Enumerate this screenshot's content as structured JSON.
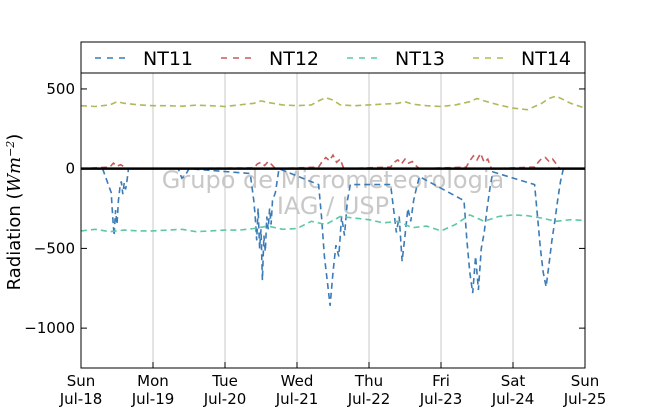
{
  "chart_data": {
    "type": "line",
    "title": "",
    "xlabel": "",
    "ylabel": "Radiation (Wm⁻²)",
    "ylabel_main": "Radiation (",
    "ylabel_unit": "Wm",
    "ylabel_exp": "−2",
    "ylabel_close": ")",
    "ylim": [
      -1250,
      600
    ],
    "yticks": [
      500,
      0,
      -500,
      -1000
    ],
    "ytick_labels": [
      "500",
      "0",
      "−500",
      "−1000"
    ],
    "xlim": [
      0,
      7
    ],
    "xticks": [
      {
        "day": "Sun",
        "date": "Jul-18"
      },
      {
        "day": "Mon",
        "date": "Jul-19"
      },
      {
        "day": "Tue",
        "date": "Jul-20"
      },
      {
        "day": "Wed",
        "date": "Jul-21"
      },
      {
        "day": "Thu",
        "date": "Jul-22"
      },
      {
        "day": "Fri",
        "date": "Jul-23"
      },
      {
        "day": "Sat",
        "date": "Jul-24"
      },
      {
        "day": "Sun",
        "date": "Jul-25"
      }
    ],
    "grid": "vertical",
    "legend_position": "top",
    "watermark_line1": "Grupo de Micrometeorologia",
    "watermark_line2": "IAG / USP",
    "zero_line": 0,
    "series": [
      {
        "name": "NT11",
        "color": "#3a7bb8",
        "x": [
          0.3,
          0.42,
          0.44,
          0.46,
          0.48,
          0.5,
          0.52,
          0.54,
          0.56,
          0.58,
          0.6,
          0.62,
          0.64,
          0.66,
          1.35,
          1.4,
          1.45,
          1.5,
          2.35,
          2.4,
          2.42,
          2.44,
          2.46,
          2.48,
          2.5,
          2.52,
          2.54,
          2.56,
          2.58,
          2.6,
          2.62,
          2.64,
          2.66,
          2.7,
          2.75,
          3.3,
          3.34,
          3.38,
          3.42,
          3.46,
          3.5,
          3.54,
          3.58,
          3.62,
          3.66,
          3.7,
          3.74,
          4.3,
          4.34,
          4.38,
          4.42,
          4.46,
          4.5,
          4.54,
          4.58,
          4.62,
          4.66,
          4.7,
          5.32,
          5.36,
          5.4,
          5.44,
          5.48,
          5.52,
          5.56,
          5.6,
          5.64,
          5.68,
          5.72,
          6.3,
          6.34,
          6.38,
          6.42,
          6.46,
          6.5,
          6.54,
          6.58,
          6.62,
          6.66,
          6.7
        ],
        "y": [
          0,
          -150,
          -300,
          -420,
          -260,
          -350,
          -200,
          -120,
          -80,
          -160,
          -90,
          -130,
          -70,
          0,
          0,
          -60,
          -40,
          0,
          -30,
          -200,
          -300,
          -450,
          -250,
          -500,
          -380,
          -700,
          -420,
          -520,
          -300,
          -380,
          -250,
          -350,
          -200,
          -150,
          0,
          -100,
          -300,
          -550,
          -700,
          -860,
          -650,
          -480,
          -550,
          -300,
          -420,
          -200,
          -100,
          -100,
          -250,
          -400,
          -300,
          -580,
          -420,
          -250,
          -330,
          -200,
          -120,
          -50,
          -200,
          -450,
          -650,
          -780,
          -550,
          -760,
          -500,
          -400,
          -250,
          -120,
          -20,
          -100,
          -300,
          -500,
          -650,
          -740,
          -600,
          -450,
          -330,
          -200,
          -80,
          0
        ]
      },
      {
        "name": "NT12",
        "color": "#c85a5a",
        "x": [
          0.0,
          0.4,
          0.45,
          0.5,
          0.55,
          0.65,
          1.0,
          2.4,
          2.45,
          2.5,
          2.55,
          2.6,
          2.65,
          2.7,
          3.3,
          3.35,
          3.4,
          3.45,
          3.5,
          3.55,
          3.6,
          3.65,
          4.3,
          4.35,
          4.4,
          4.45,
          4.5,
          4.55,
          4.6,
          4.65,
          4.7,
          5.35,
          5.4,
          5.45,
          5.5,
          5.55,
          5.6,
          5.65,
          5.7,
          6.3,
          6.35,
          6.4,
          6.45,
          6.5,
          6.55,
          6.6,
          6.65,
          7.0
        ],
        "y": [
          0,
          10,
          35,
          15,
          25,
          0,
          0,
          5,
          30,
          40,
          20,
          45,
          25,
          0,
          10,
          45,
          70,
          50,
          85,
          40,
          60,
          0,
          10,
          40,
          55,
          30,
          60,
          35,
          45,
          20,
          0,
          10,
          50,
          80,
          55,
          95,
          40,
          60,
          0,
          10,
          40,
          65,
          70,
          45,
          60,
          30,
          0,
          0
        ]
      },
      {
        "name": "NT13",
        "color": "#5cc8a8",
        "x": [
          0.0,
          0.2,
          0.4,
          0.6,
          0.8,
          1.0,
          1.2,
          1.4,
          1.6,
          1.8,
          2.0,
          2.2,
          2.4,
          2.6,
          2.8,
          3.0,
          3.2,
          3.4,
          3.6,
          3.8,
          4.0,
          4.2,
          4.4,
          4.6,
          4.8,
          5.0,
          5.2,
          5.4,
          5.6,
          5.8,
          6.0,
          6.2,
          6.4,
          6.6,
          6.8,
          7.0
        ],
        "y": [
          -390,
          -380,
          -395,
          -385,
          -390,
          -390,
          -385,
          -380,
          -395,
          -390,
          -385,
          -385,
          -375,
          -360,
          -380,
          -375,
          -330,
          -350,
          -300,
          -310,
          -320,
          -340,
          -330,
          -370,
          -360,
          -390,
          -350,
          -290,
          -330,
          -300,
          -290,
          -295,
          -310,
          -330,
          -320,
          -325
        ]
      },
      {
        "name": "NT14",
        "color": "#b0b858",
        "x": [
          0.0,
          0.2,
          0.4,
          0.5,
          0.6,
          0.8,
          1.0,
          1.2,
          1.4,
          1.6,
          1.8,
          2.0,
          2.2,
          2.4,
          2.5,
          2.6,
          2.8,
          3.0,
          3.2,
          3.3,
          3.4,
          3.5,
          3.6,
          3.8,
          4.0,
          4.2,
          4.4,
          4.5,
          4.6,
          4.8,
          5.0,
          5.2,
          5.4,
          5.5,
          5.6,
          5.8,
          6.0,
          6.2,
          6.4,
          6.5,
          6.6,
          6.8,
          7.0
        ],
        "y": [
          395,
          390,
          400,
          420,
          410,
          400,
          395,
          395,
          392,
          398,
          395,
          390,
          400,
          410,
          425,
          415,
          400,
          395,
          400,
          425,
          445,
          430,
          400,
          395,
          400,
          405,
          410,
          420,
          405,
          395,
          390,
          400,
          420,
          440,
          425,
          400,
          380,
          370,
          410,
          440,
          455,
          410,
          380
        ]
      }
    ]
  }
}
